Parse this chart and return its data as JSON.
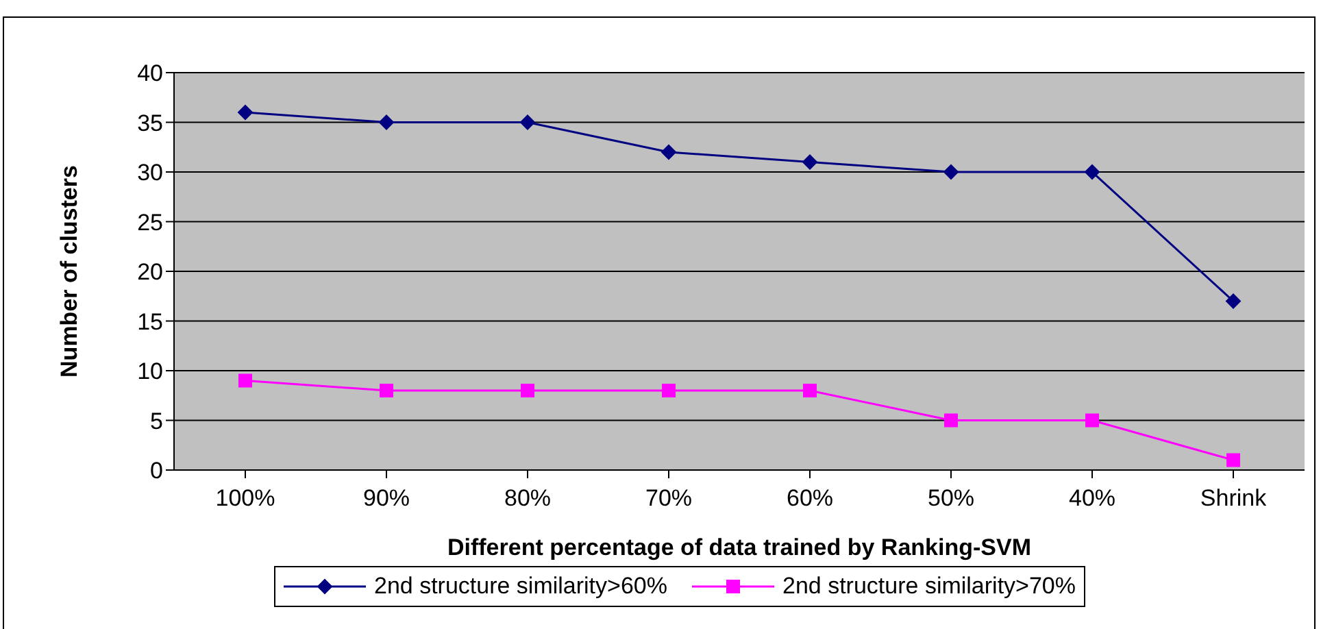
{
  "chart_data": {
    "type": "line",
    "xlabel": "Different percentage of data trained by Ranking-SVM",
    "ylabel": "Number of clusters",
    "categories": [
      "100%",
      "90%",
      "80%",
      "70%",
      "60%",
      "50%",
      "40%",
      "Shrink"
    ],
    "series": [
      {
        "name": "2nd structure similarity>60%",
        "color": "#000080",
        "marker": "diamond",
        "values": [
          36,
          35,
          35,
          32,
          31,
          30,
          30,
          17
        ]
      },
      {
        "name": "2nd structure similarity>70%",
        "color": "#ff00ff",
        "marker": "square",
        "values": [
          9,
          8,
          8,
          8,
          8,
          5,
          5,
          1
        ]
      }
    ],
    "ylim": [
      0,
      40
    ],
    "yticks": [
      0,
      5,
      10,
      15,
      20,
      25,
      30,
      35,
      40
    ],
    "grid": "y",
    "legend": "bottom"
  }
}
